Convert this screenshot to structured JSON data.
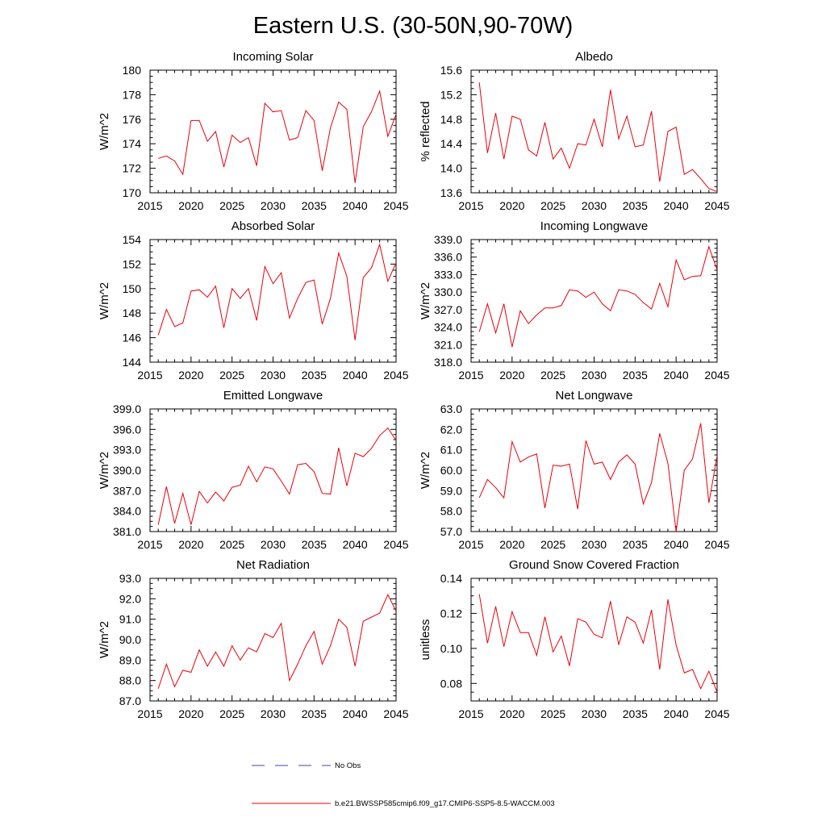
{
  "figure": {
    "title": "Eastern U.S. (30-50N,90-70W)",
    "colors": {
      "series": "#e8000b",
      "obs": "#4444aa",
      "axis": "#000000"
    }
  },
  "legend": {
    "obs_label": "No Obs",
    "model_label": "b.e21.BWSSP585cmip6.f09_g17.CMIP6-SSP5-8.5-WACCM.003"
  },
  "chart_data": [
    {
      "type": "line",
      "title": "Incoming Solar",
      "ylabel": "W/m^2",
      "xlim": [
        2015,
        2045
      ],
      "ylim": [
        170,
        180
      ],
      "xticks": [
        2015,
        2020,
        2025,
        2030,
        2035,
        2040,
        2045
      ],
      "yticks": [
        "170",
        "172",
        "174",
        "176",
        "178",
        "180"
      ],
      "x": [
        2016,
        2017,
        2018,
        2019,
        2020,
        2021,
        2022,
        2023,
        2024,
        2025,
        2026,
        2027,
        2028,
        2029,
        2030,
        2031,
        2032,
        2033,
        2034,
        2035,
        2036,
        2037,
        2038,
        2039,
        2040,
        2041,
        2042,
        2043,
        2044,
        2045
      ],
      "series": [
        {
          "name": "b.e21.BWSSP585cmip6.f09_g17.CMIP6-SSP5-8.5-WACCM.003",
          "values": [
            172.8,
            173.0,
            172.6,
            171.5,
            175.9,
            175.9,
            174.2,
            175.0,
            172.1,
            174.7,
            174.1,
            174.5,
            172.2,
            177.3,
            176.6,
            176.7,
            174.3,
            174.5,
            176.7,
            175.9,
            171.8,
            175.3,
            177.4,
            176.8,
            170.8,
            175.4,
            176.6,
            178.3,
            174.6,
            176.4
          ]
        }
      ]
    },
    {
      "type": "line",
      "title": "Albedo",
      "ylabel": "% reflected",
      "xlim": [
        2015,
        2045
      ],
      "ylim": [
        13.6,
        15.6
      ],
      "xticks": [
        2015,
        2020,
        2025,
        2030,
        2035,
        2040,
        2045
      ],
      "yticks": [
        "13.6",
        "14.0",
        "14.4",
        "14.8",
        "15.2",
        "15.6"
      ],
      "x": [
        2016,
        2017,
        2018,
        2019,
        2020,
        2021,
        2022,
        2023,
        2024,
        2025,
        2026,
        2027,
        2028,
        2029,
        2030,
        2031,
        2032,
        2033,
        2034,
        2035,
        2036,
        2037,
        2038,
        2039,
        2040,
        2041,
        2042,
        2043,
        2044,
        2045
      ],
      "series": [
        {
          "name": "b.e21.BWSSP585cmip6.f09_g17.CMIP6-SSP5-8.5-WACCM.003",
          "values": [
            15.4,
            14.25,
            14.9,
            14.15,
            14.85,
            14.8,
            14.3,
            14.2,
            14.75,
            14.15,
            14.33,
            14.0,
            14.4,
            14.38,
            14.8,
            14.35,
            15.28,
            14.48,
            14.85,
            14.35,
            14.38,
            14.93,
            13.78,
            14.6,
            14.67,
            13.9,
            13.98,
            13.83,
            13.67,
            13.62
          ]
        }
      ]
    },
    {
      "type": "line",
      "title": "Absorbed Solar",
      "ylabel": "W/m^2",
      "xlim": [
        2015,
        2045
      ],
      "ylim": [
        144,
        154
      ],
      "xticks": [
        2015,
        2020,
        2025,
        2030,
        2035,
        2040,
        2045
      ],
      "yticks": [
        "144",
        "146",
        "148",
        "150",
        "152",
        "154"
      ],
      "x": [
        2016,
        2017,
        2018,
        2019,
        2020,
        2021,
        2022,
        2023,
        2024,
        2025,
        2026,
        2027,
        2028,
        2029,
        2030,
        2031,
        2032,
        2033,
        2034,
        2035,
        2036,
        2037,
        2038,
        2039,
        2040,
        2041,
        2042,
        2043,
        2044,
        2045
      ],
      "series": [
        {
          "name": "b.e21.BWSSP585cmip6.f09_g17.CMIP6-SSP5-8.5-WACCM.003",
          "values": [
            146.2,
            148.3,
            146.9,
            147.2,
            149.8,
            149.9,
            149.3,
            150.2,
            146.8,
            150.0,
            149.2,
            150.0,
            147.4,
            151.8,
            150.4,
            151.3,
            147.6,
            149.2,
            150.5,
            150.7,
            147.1,
            149.2,
            152.9,
            151.0,
            145.8,
            150.9,
            151.7,
            153.6,
            150.6,
            152.1
          ]
        }
      ]
    },
    {
      "type": "line",
      "title": "Incoming Longwave",
      "ylabel": "W/m^2",
      "xlim": [
        2015,
        2045
      ],
      "ylim": [
        318,
        339
      ],
      "xticks": [
        2015,
        2020,
        2025,
        2030,
        2035,
        2040,
        2045
      ],
      "yticks": [
        "318.0",
        "321.0",
        "324.0",
        "327.0",
        "330.0",
        "333.0",
        "336.0",
        "339.0"
      ],
      "x": [
        2016,
        2017,
        2018,
        2019,
        2020,
        2021,
        2022,
        2023,
        2024,
        2025,
        2026,
        2027,
        2028,
        2029,
        2030,
        2031,
        2032,
        2033,
        2034,
        2035,
        2036,
        2037,
        2038,
        2039,
        2040,
        2041,
        2042,
        2043,
        2044,
        2045
      ],
      "series": [
        {
          "name": "b.e21.BWSSP585cmip6.f09_g17.CMIP6-SSP5-8.5-WACCM.003",
          "values": [
            323.2,
            328.0,
            323.0,
            328.0,
            320.6,
            326.8,
            324.6,
            326.1,
            327.3,
            327.3,
            327.7,
            330.4,
            330.2,
            329.1,
            330.0,
            328.0,
            326.8,
            330.4,
            330.2,
            329.6,
            328.2,
            327.1,
            331.5,
            327.5,
            335.5,
            332.1,
            332.7,
            332.8,
            337.8,
            333.8
          ]
        }
      ]
    },
    {
      "type": "line",
      "title": "Emitted Longwave",
      "ylabel": "W/m^2",
      "xlim": [
        2015,
        2045
      ],
      "ylim": [
        381,
        399
      ],
      "xticks": [
        2015,
        2020,
        2025,
        2030,
        2035,
        2040,
        2045
      ],
      "yticks": [
        "381.0",
        "384.0",
        "387.0",
        "390.0",
        "393.0",
        "396.0",
        "399.0"
      ],
      "x": [
        2016,
        2017,
        2018,
        2019,
        2020,
        2021,
        2022,
        2023,
        2024,
        2025,
        2026,
        2027,
        2028,
        2029,
        2030,
        2031,
        2032,
        2033,
        2034,
        2035,
        2036,
        2037,
        2038,
        2039,
        2040,
        2041,
        2042,
        2043,
        2044,
        2045
      ],
      "series": [
        {
          "name": "b.e21.BWSSP585cmip6.f09_g17.CMIP6-SSP5-8.5-WACCM.003",
          "values": [
            382.0,
            387.6,
            382.2,
            386.6,
            382.0,
            386.9,
            385.2,
            386.8,
            385.5,
            387.5,
            387.8,
            390.6,
            388.3,
            390.5,
            390.2,
            388.4,
            386.5,
            390.8,
            391.0,
            389.8,
            386.6,
            386.5,
            393.3,
            387.7,
            392.5,
            392.0,
            393.2,
            395.1,
            396.2,
            394.4
          ]
        }
      ]
    },
    {
      "type": "line",
      "title": "Net Longwave",
      "ylabel": "W/m^2",
      "xlim": [
        2015,
        2045
      ],
      "ylim": [
        57,
        63
      ],
      "xticks": [
        2015,
        2020,
        2025,
        2030,
        2035,
        2040,
        2045
      ],
      "yticks": [
        "57.0",
        "58.0",
        "59.0",
        "60.0",
        "61.0",
        "62.0",
        "63.0"
      ],
      "x": [
        2016,
        2017,
        2018,
        2019,
        2020,
        2021,
        2022,
        2023,
        2024,
        2025,
        2026,
        2027,
        2028,
        2029,
        2030,
        2031,
        2032,
        2033,
        2034,
        2035,
        2036,
        2037,
        2038,
        2039,
        2040,
        2041,
        2042,
        2043,
        2044,
        2045
      ],
      "series": [
        {
          "name": "b.e21.BWSSP585cmip6.f09_g17.CMIP6-SSP5-8.5-WACCM.003",
          "values": [
            58.65,
            59.55,
            59.15,
            58.65,
            61.4,
            60.4,
            60.65,
            60.8,
            58.15,
            60.25,
            60.2,
            60.3,
            58.1,
            61.45,
            60.3,
            60.4,
            59.55,
            60.4,
            60.75,
            60.3,
            58.35,
            59.4,
            61.8,
            60.35,
            57.0,
            60.0,
            60.55,
            62.3,
            58.4,
            60.7
          ]
        }
      ]
    },
    {
      "type": "line",
      "title": "Net Radiation",
      "ylabel": "W/m^2",
      "xlim": [
        2015,
        2045
      ],
      "ylim": [
        87,
        93
      ],
      "xticks": [
        2015,
        2020,
        2025,
        2030,
        2035,
        2040,
        2045
      ],
      "yticks": [
        "87.0",
        "88.0",
        "89.0",
        "90.0",
        "91.0",
        "92.0",
        "93.0"
      ],
      "x": [
        2016,
        2017,
        2018,
        2019,
        2020,
        2021,
        2022,
        2023,
        2024,
        2025,
        2026,
        2027,
        2028,
        2029,
        2030,
        2031,
        2032,
        2033,
        2034,
        2035,
        2036,
        2037,
        2038,
        2039,
        2040,
        2041,
        2042,
        2043,
        2044,
        2045
      ],
      "series": [
        {
          "name": "b.e21.BWSSP585cmip6.f09_g17.CMIP6-SSP5-8.5-WACCM.003",
          "values": [
            87.6,
            88.8,
            87.7,
            88.5,
            88.4,
            89.5,
            88.7,
            89.4,
            88.7,
            89.7,
            89.0,
            89.6,
            89.4,
            90.3,
            90.1,
            90.8,
            88.0,
            88.8,
            89.7,
            90.4,
            88.8,
            89.7,
            91.0,
            90.6,
            88.7,
            90.9,
            91.1,
            91.3,
            92.2,
            91.4
          ]
        }
      ]
    },
    {
      "type": "line",
      "title": "Ground Snow Covered Fraction",
      "ylabel": "unitless",
      "xlim": [
        2015,
        2045
      ],
      "ylim": [
        0.07,
        0.14
      ],
      "xticks": [
        2015,
        2020,
        2025,
        2030,
        2035,
        2040,
        2045
      ],
      "yticks": [
        "0.08",
        "0.10",
        "0.12",
        "0.14"
      ],
      "x": [
        2016,
        2017,
        2018,
        2019,
        2020,
        2021,
        2022,
        2023,
        2024,
        2025,
        2026,
        2027,
        2028,
        2029,
        2030,
        2031,
        2032,
        2033,
        2034,
        2035,
        2036,
        2037,
        2038,
        2039,
        2040,
        2041,
        2042,
        2043,
        2044,
        2045
      ],
      "series": [
        {
          "name": "b.e21.BWSSP585cmip6.f09_g17.CMIP6-SSP5-8.5-WACCM.003",
          "values": [
            0.131,
            0.103,
            0.124,
            0.101,
            0.121,
            0.109,
            0.109,
            0.096,
            0.118,
            0.098,
            0.107,
            0.09,
            0.117,
            0.115,
            0.108,
            0.106,
            0.127,
            0.102,
            0.118,
            0.115,
            0.103,
            0.122,
            0.088,
            0.128,
            0.102,
            0.086,
            0.088,
            0.077,
            0.087,
            0.075
          ]
        }
      ]
    }
  ]
}
